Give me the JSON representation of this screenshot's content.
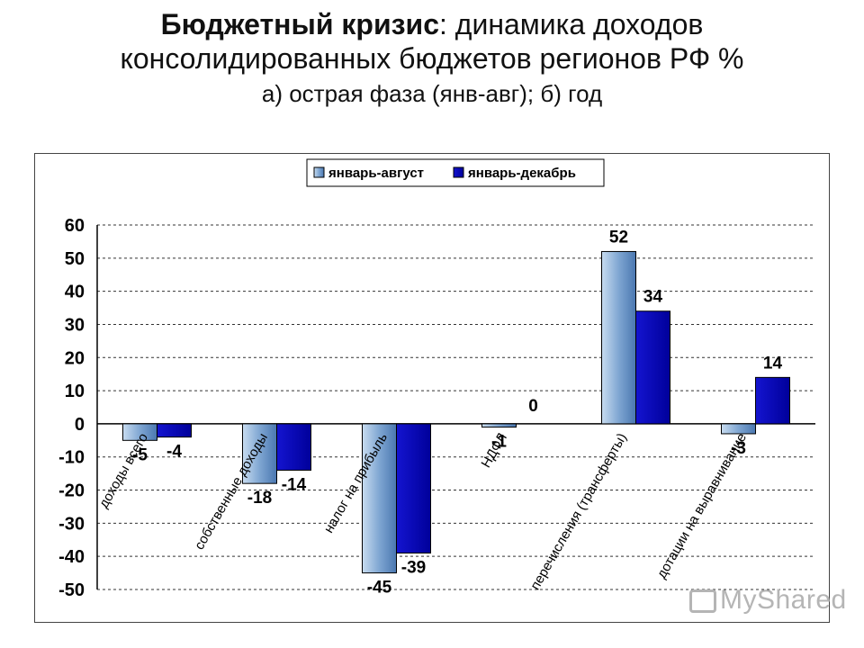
{
  "title": {
    "bold": "Бюджетный кризис",
    "rest": ": динамика доходов",
    "line2": "консолидированных бюджетов регионов РФ %",
    "line3": "а) острая фаза (янв-авг); б) год"
  },
  "watermark": "MyShared",
  "colors": {
    "series1": "#8fb4dc",
    "series2": "#0a0ab4",
    "grid": "#333333"
  },
  "chart_data": {
    "type": "bar",
    "title": "",
    "xlabel": "",
    "ylabel": "",
    "ylim": [
      -50,
      60
    ],
    "yticks": [
      60,
      50,
      40,
      30,
      20,
      10,
      0,
      -10,
      -20,
      -30,
      -40,
      -50
    ],
    "grid": true,
    "legend_position": "top-center",
    "categories": [
      "доходы всего",
      "собственные доходы",
      "налог на прибыль",
      "НДФЛ",
      "перечисления (трансферты)",
      "дотации на выравнивание"
    ],
    "series": [
      {
        "name": "январь-август",
        "values": [
          -5,
          -18,
          -45,
          -1,
          52,
          -3
        ],
        "labels": [
          "-5",
          "-18",
          "-45",
          "-1",
          "52",
          "-3"
        ]
      },
      {
        "name": "январь-декабрь",
        "values": [
          -4,
          -14,
          -39,
          0,
          34,
          14
        ],
        "labels": [
          "-4",
          "-14",
          "-39",
          "0",
          "34",
          "14"
        ]
      }
    ]
  }
}
